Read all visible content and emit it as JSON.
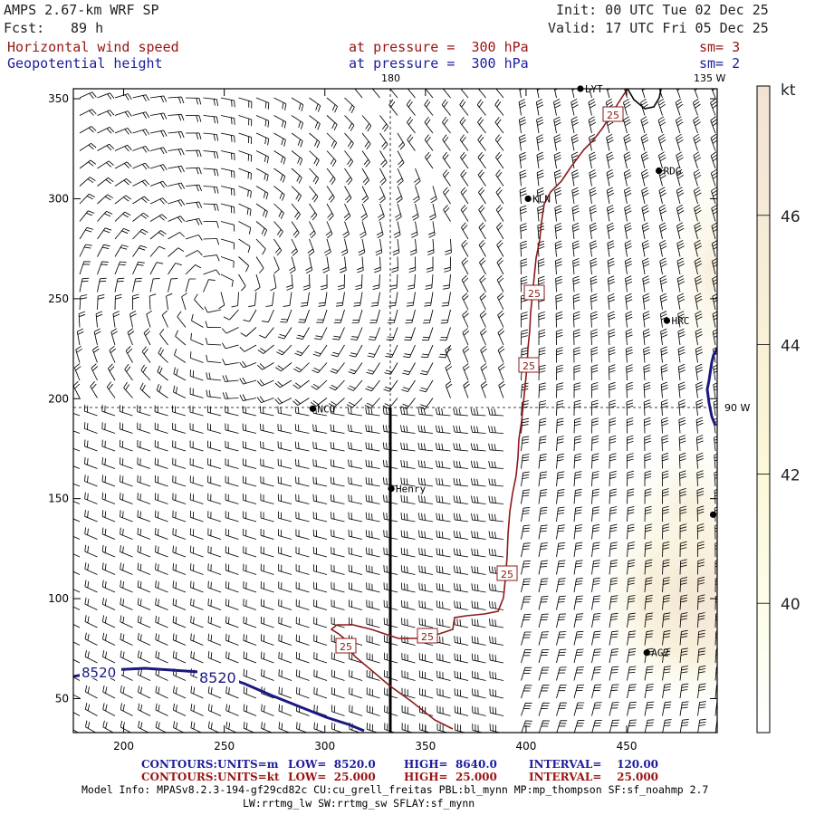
{
  "header": {
    "model": "AMPS 2.67-km WRF SP",
    "fcst_label": "Fcst:",
    "fcst_value": "89 h",
    "init": "Init: 00 UTC Tue 02 Dec 25",
    "valid": "Valid: 17 UTC Fri 05 Dec 25",
    "field1": "Horizontal wind speed",
    "field1_pressure": "at pressure =  300 hPa",
    "field1_sm": "sm= 3",
    "field2": "Geopotential height",
    "field2_pressure": "at pressure =  300 hPa",
    "field2_sm": "sm= 2"
  },
  "map_labels": {
    "lon_top_180": "180",
    "lon_top_135w": "135 W",
    "lon_right_90w": "90 W"
  },
  "stations": [
    {
      "id": "LYT",
      "x": 427,
      "y": 355
    },
    {
      "id": "RDG",
      "x": 466,
      "y": 314
    },
    {
      "id": "KLN",
      "x": 401,
      "y": 300
    },
    {
      "id": "HRC",
      "x": 470,
      "y": 239
    },
    {
      "id": "NCO",
      "x": 294,
      "y": 195
    },
    {
      "id": "Henry",
      "x": 333,
      "y": 155
    },
    {
      "id": "AG2",
      "x": 460,
      "y": 73
    },
    {
      "id": "",
      "x": 493,
      "y": 142
    }
  ],
  "contour_labels": {
    "height": "8520",
    "wind_25": "25"
  },
  "chart_data": {
    "type": "map",
    "xlim": [
      175,
      495
    ],
    "ylim": [
      33,
      355
    ],
    "x_ticks": [
      200,
      250,
      300,
      350,
      400,
      450
    ],
    "y_ticks": [
      50,
      100,
      150,
      200,
      250,
      300,
      350
    ],
    "colorbar": {
      "unit": "kt",
      "ticks": [
        40,
        42,
        44,
        46
      ],
      "range": [
        38,
        48
      ]
    },
    "wind_speed_contour_kt": 25,
    "height_contour_m": 8520
  },
  "footer": {
    "c1_title": "CONTOURS:",
    "c1_units": "UNITS=m",
    "c1_low": "LOW=  8520.0",
    "c1_high": "HIGH=  8640.0",
    "c1_interval": "INTERVAL=    120.00",
    "c2_title": "CONTOURS:",
    "c2_units": "UNITS=kt",
    "c2_low": "LOW=  25.000",
    "c2_high": "HIGH=  25.000",
    "c2_interval": "INTERVAL=    25.000",
    "info1": "Model Info: MPASv8.2.3-194-gf29cd82c CU:cu_grell_freitas PBL:bl_mynn MP:mp_thompson SF:sf_noahmp 2.7",
    "info2": "LW:rrtmg_lw SW:rrtmg_sw SFLAY:sf_mynn"
  },
  "colors": {
    "wind_contour": "#8b1a1a",
    "height_contour": "#1a1a80",
    "fill_light": "#fdfbe0",
    "fill_mid": "#f6eed8",
    "fill_strong": "#f0e0d0"
  }
}
